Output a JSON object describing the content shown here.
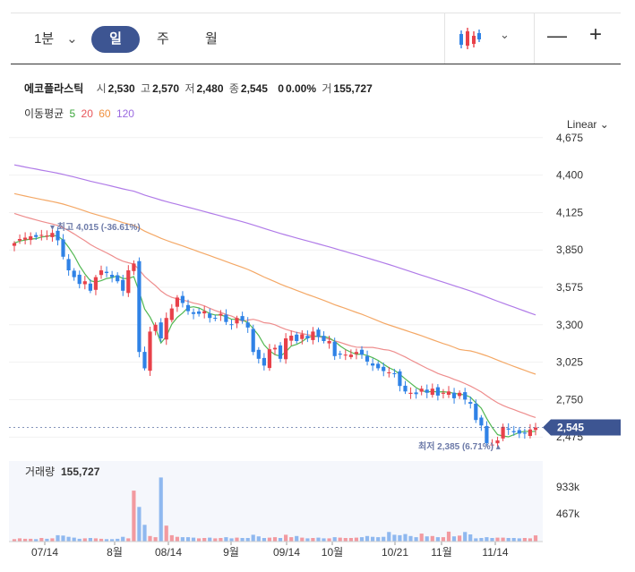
{
  "toolbar": {
    "interval": "1분",
    "tabs": [
      "일",
      "주",
      "월"
    ],
    "active_tab": "일"
  },
  "stock": {
    "name": "에코플라스틱",
    "open_label": "시",
    "open": "2,530",
    "high_label": "고",
    "high": "2,570",
    "low_label": "저",
    "low": "2,480",
    "close_label": "종",
    "close": "2,545",
    "change": "0",
    "change_pct": "0.00%",
    "volume_label": "거",
    "volume": "155,727"
  },
  "moving_average": {
    "label": "이동평균",
    "periods": [
      {
        "value": "5",
        "color": "#3aa53a"
      },
      {
        "value": "20",
        "color": "#e8555a"
      },
      {
        "value": "60",
        "color": "#f0903e"
      },
      {
        "value": "120",
        "color": "#9b6be0"
      }
    ]
  },
  "scale_mode": "Linear",
  "colors": {
    "up": "#e8414a",
    "down": "#2f82e6",
    "accent": "#3d5592"
  },
  "chart_data": {
    "type": "candlestick",
    "x_labels": [
      "07/14",
      "8월",
      "08/14",
      "9월",
      "09/14",
      "10월",
      "10/21",
      "11월",
      "11/14"
    ],
    "y_ticks": [
      "4,675",
      "4,400",
      "4,125",
      "3,850",
      "3,575",
      "3,300",
      "3,025",
      "2,750",
      "2,475"
    ],
    "ylim": [
      2450,
      4700
    ],
    "current_price": "2,545",
    "max_annotation": "최고 4,015 (-36.61%)",
    "min_annotation": "최저 2,385 (6.71%)",
    "close": [
      3900,
      3930,
      3940,
      3950,
      3945,
      3960,
      3955,
      3975,
      3920,
      3800,
      3700,
      3650,
      3600,
      3620,
      3550,
      3650,
      3700,
      3680,
      3650,
      3620,
      3550,
      3700,
      3750,
      3100,
      2980,
      3250,
      3300,
      3200,
      3350,
      3420,
      3500,
      3460,
      3400,
      3380,
      3380,
      3400,
      3350,
      3350,
      3380,
      3320,
      3300,
      3350,
      3330,
      3280,
      3100,
      3050,
      3000,
      3120,
      3130,
      3050,
      3200,
      3220,
      3180,
      3230,
      3200,
      3250,
      3210,
      3180,
      3180,
      3070,
      3080,
      3080,
      3080,
      3100,
      3080,
      3030,
      3000,
      2980,
      2960,
      2950,
      2940,
      2850,
      2810,
      2800,
      2790,
      2830,
      2800,
      2830,
      2780,
      2800,
      2810,
      2760,
      2800,
      2750,
      2720,
      2600,
      2560,
      2430,
      2420,
      2450,
      2550,
      2530,
      2510,
      2500,
      2500,
      2530,
      2545
    ],
    "volume_label": "거래량",
    "volume": "155,727",
    "volume_ticks": [
      "933k",
      "467k"
    ],
    "volume_series": [
      60,
      80,
      70,
      70,
      60,
      90,
      70,
      80,
      160,
      150,
      120,
      100,
      70,
      80,
      90,
      80,
      70,
      60,
      60,
      70,
      120,
      80,
      1280,
      870,
      420,
      140,
      110,
      1610,
      400,
      160,
      120,
      110,
      110,
      100,
      80,
      90,
      100,
      80,
      90,
      110,
      80,
      100,
      90,
      90,
      170,
      130,
      90,
      100,
      110,
      90,
      170,
      110,
      140,
      100,
      80,
      90,
      100,
      80,
      80,
      110,
      100,
      90,
      90,
      100,
      110,
      140,
      120,
      110,
      120,
      240,
      170,
      160,
      190,
      140,
      110,
      200,
      130,
      140,
      110,
      110,
      250,
      130,
      150,
      240,
      180,
      80,
      90,
      110,
      90,
      100,
      100,
      90,
      90,
      80,
      90,
      80,
      156
    ]
  }
}
